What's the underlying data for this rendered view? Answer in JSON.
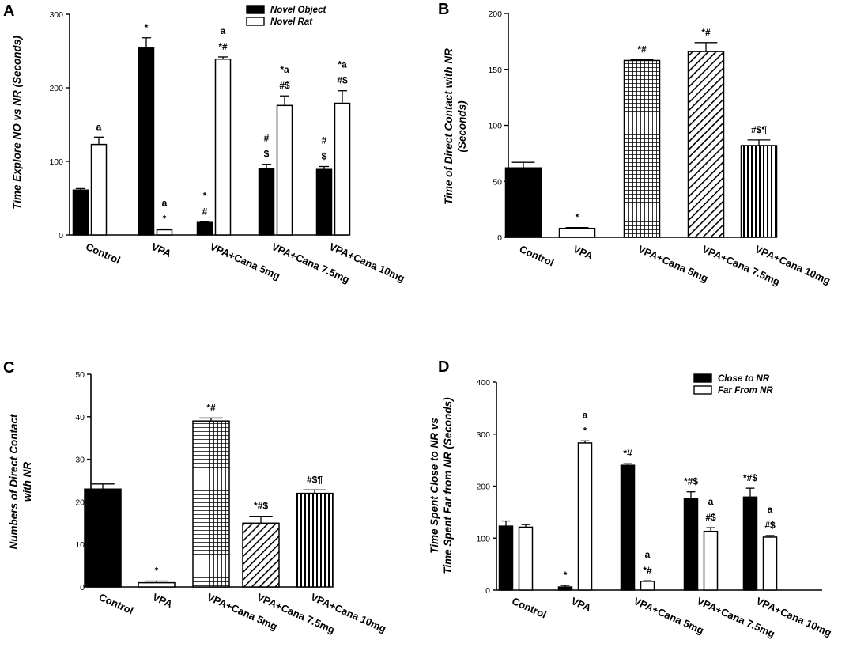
{
  "chart_data": [
    {
      "panel": "A",
      "type": "bar",
      "ylabel": "Time Explore NO vs NR (Seconds)",
      "ylim": [
        0,
        300
      ],
      "yticks": [
        0,
        100,
        200,
        300
      ],
      "categories": [
        "Control",
        "VPA",
        "VPA+Cana 5mg",
        "VPA+Cana 7.5mg",
        "VPA+Cana 10mg"
      ],
      "legend": "top-right",
      "series": [
        {
          "name": "Novel Object",
          "fill": "solid",
          "values": [
            61,
            254,
            17,
            90,
            89
          ],
          "errors": [
            2,
            14,
            1,
            6,
            4
          ],
          "annotations": [
            "",
            "*",
            "*\n#",
            "#\n$",
            "#\n$"
          ]
        },
        {
          "name": "Novel Rat",
          "fill": "open",
          "values": [
            123,
            7,
            239,
            176,
            179
          ],
          "errors": [
            10,
            1,
            3,
            13,
            17
          ],
          "annotations": [
            "a",
            "a\n*",
            "a\n*#",
            "*a\n#$",
            "*a\n#$"
          ]
        }
      ]
    },
    {
      "panel": "B",
      "type": "bar",
      "ylabel": "Time of Direct Contact with NR\n(Seconds)",
      "ylim": [
        0,
        200
      ],
      "yticks": [
        0,
        50,
        100,
        150,
        200
      ],
      "categories": [
        "Control",
        "VPA",
        "VPA+Cana 5mg",
        "VPA+Cana 7.5mg",
        "VPA+Cana 10mg"
      ],
      "series": [
        {
          "name": "",
          "values": [
            62,
            8,
            158,
            166,
            82
          ],
          "errors": [
            5,
            0.7,
            0.8,
            8,
            5
          ],
          "fills": [
            "solid",
            "open",
            "grid",
            "diag",
            "vert"
          ],
          "annotations": [
            "",
            "*",
            "*#",
            "*#",
            "#$¶"
          ]
        }
      ]
    },
    {
      "panel": "C",
      "type": "bar",
      "ylabel": "Numbers of Direct Contact\nwith NR",
      "ylim": [
        0,
        50
      ],
      "yticks": [
        0,
        10,
        20,
        30,
        40,
        50
      ],
      "categories": [
        "Control",
        "VPA",
        "VPA+Cana 5mg",
        "VPA+Cana 7.5mg",
        "VPA+Cana 10mg"
      ],
      "series": [
        {
          "name": "",
          "values": [
            23,
            1,
            39,
            15,
            22
          ],
          "errors": [
            1.2,
            0.4,
            0.7,
            1.6,
            0.8
          ],
          "fills": [
            "solid",
            "open",
            "grid",
            "diag",
            "vert"
          ],
          "annotations": [
            "",
            "*",
            "*#",
            "*#$",
            "#$¶"
          ]
        }
      ]
    },
    {
      "panel": "D",
      "type": "bar",
      "ylabel": "Time Spent Close to NR vs\nTime Spent Far from NR (Seconds)",
      "ylim": [
        0,
        400
      ],
      "yticks": [
        0,
        100,
        200,
        300,
        400
      ],
      "categories": [
        "Control",
        "VPA",
        "VPA+Cana 5mg",
        "VPA+Cana 7.5mg",
        "VPA+Cana 10mg"
      ],
      "legend": "top-right",
      "series": [
        {
          "name": "Close to NR",
          "fill": "solid",
          "values": [
            123,
            6,
            240,
            176,
            179
          ],
          "errors": [
            10,
            3,
            3,
            13,
            17
          ],
          "annotations": [
            "",
            "*",
            "*#",
            "*#$",
            "*#$"
          ]
        },
        {
          "name": "Far From NR",
          "fill": "open",
          "values": [
            121,
            283,
            17,
            113,
            102
          ],
          "errors": [
            5,
            4,
            1,
            7,
            3
          ],
          "annotations": [
            "",
            "a\n*",
            "a\n*#",
            "a\n#$",
            "a\n#$"
          ]
        }
      ]
    }
  ]
}
